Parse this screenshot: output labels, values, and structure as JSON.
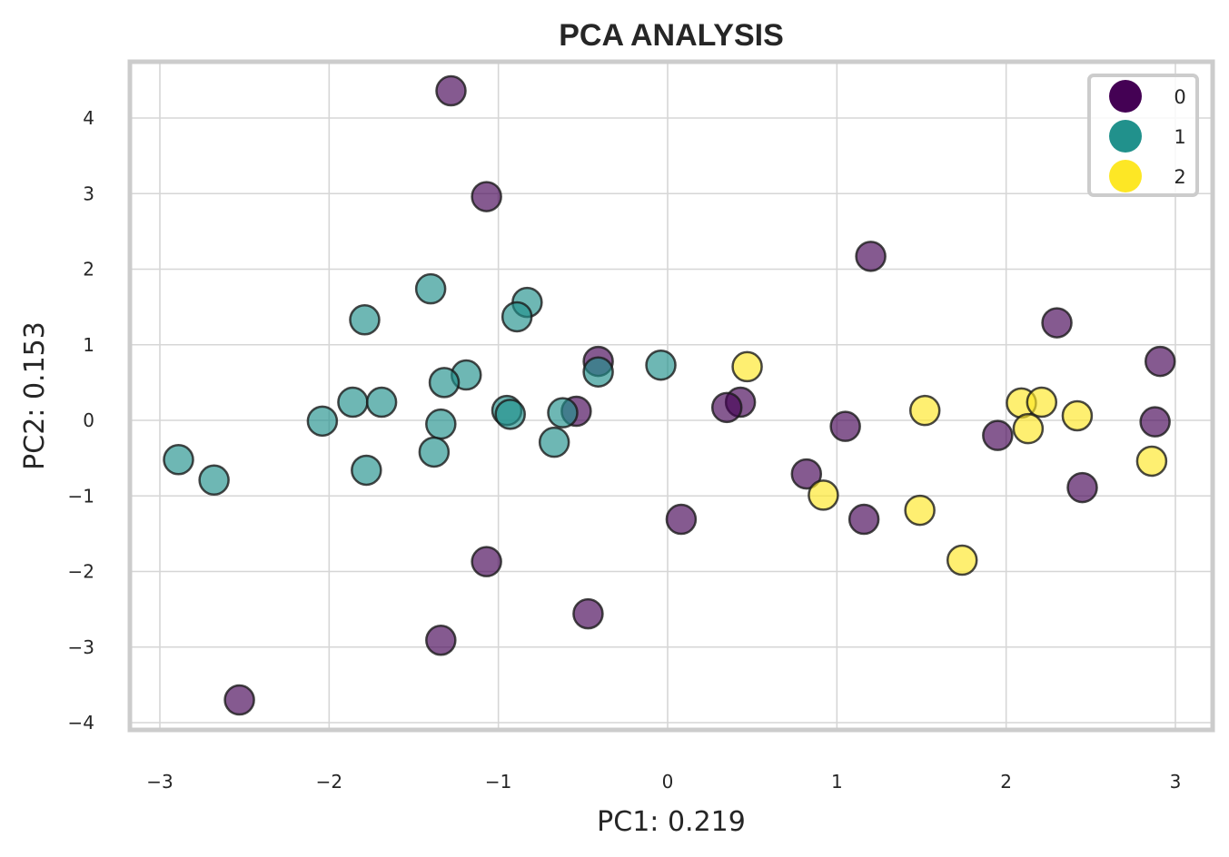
{
  "chart_data": {
    "type": "scatter",
    "title": "PCA ANALYSIS",
    "xlabel": "PC1: 0.219",
    "ylabel": "PC2: 0.153",
    "xlim": [
      -3.2,
      3.2
    ],
    "ylim": [
      -4.1,
      4.8
    ],
    "xticks": [
      -3,
      -2,
      -1,
      0,
      1,
      2,
      3
    ],
    "yticks": [
      -4,
      -3,
      -2,
      -1,
      0,
      1,
      2,
      3,
      4
    ],
    "xtick_labels": [
      "−3",
      "−2",
      "−1",
      "0",
      "1",
      "2",
      "3"
    ],
    "ytick_labels": [
      "−4",
      "−3",
      "−2",
      "−1",
      "0",
      "1",
      "2",
      "3",
      "4"
    ],
    "grid": true,
    "legend_position": "top-right",
    "series": [
      {
        "name": "0",
        "color": "#440154",
        "points": [
          [
            -1.28,
            4.36
          ],
          [
            -1.07,
            2.96
          ],
          [
            1.2,
            2.17
          ],
          [
            2.3,
            1.29
          ],
          [
            2.91,
            0.78
          ],
          [
            -0.41,
            0.78
          ],
          [
            0.43,
            0.24
          ],
          [
            0.35,
            0.17
          ],
          [
            -0.54,
            0.12
          ],
          [
            1.05,
            -0.08
          ],
          [
            2.88,
            -0.02
          ],
          [
            1.95,
            -0.2
          ],
          [
            0.82,
            -0.71
          ],
          [
            2.45,
            -0.89
          ],
          [
            0.08,
            -1.31
          ],
          [
            1.16,
            -1.31
          ],
          [
            -1.07,
            -1.87
          ],
          [
            -0.47,
            -2.56
          ],
          [
            -1.34,
            -2.91
          ],
          [
            -2.53,
            -3.7
          ]
        ]
      },
      {
        "name": "1",
        "color": "#21918c",
        "points": [
          [
            -1.4,
            1.74
          ],
          [
            -0.83,
            1.56
          ],
          [
            -1.79,
            1.33
          ],
          [
            -0.89,
            1.37
          ],
          [
            -0.41,
            0.64
          ],
          [
            -0.04,
            0.73
          ],
          [
            -1.19,
            0.6
          ],
          [
            -1.32,
            0.5
          ],
          [
            -1.86,
            0.24
          ],
          [
            -1.69,
            0.24
          ],
          [
            -2.04,
            -0.01
          ],
          [
            -0.95,
            0.13
          ],
          [
            -0.93,
            0.08
          ],
          [
            -0.62,
            0.1
          ],
          [
            -1.34,
            -0.05
          ],
          [
            -0.67,
            -0.29
          ],
          [
            -1.38,
            -0.42
          ],
          [
            -1.78,
            -0.66
          ],
          [
            -2.89,
            -0.52
          ],
          [
            -2.68,
            -0.79
          ]
        ]
      },
      {
        "name": "2",
        "color": "#fde725",
        "points": [
          [
            0.47,
            0.71
          ],
          [
            1.52,
            0.13
          ],
          [
            2.09,
            0.23
          ],
          [
            2.21,
            0.24
          ],
          [
            2.13,
            -0.11
          ],
          [
            2.42,
            0.06
          ],
          [
            0.92,
            -0.99
          ],
          [
            1.49,
            -1.19
          ],
          [
            1.74,
            -1.85
          ],
          [
            2.86,
            -0.54
          ]
        ]
      }
    ]
  }
}
